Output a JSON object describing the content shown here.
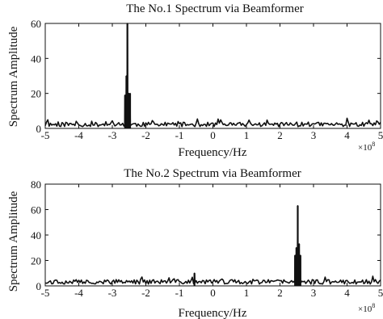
{
  "chart_data": [
    {
      "type": "line",
      "title": "The No.1 Spectrum via Beamformer",
      "xlabel": "Frequency/Hz",
      "ylabel": "Spectrum Amplitude",
      "x_multiplier": "×10",
      "x_multiplier_exp": "8",
      "xlim": [
        -5,
        5
      ],
      "ylim": [
        0,
        60
      ],
      "xticks": [
        "-5",
        "-4",
        "-3",
        "-2",
        "-1",
        "0",
        "1",
        "2",
        "3",
        "4",
        "5"
      ],
      "yticks": [
        "0",
        "20",
        "40",
        "60"
      ],
      "grid": false,
      "noise_floor": 2.8,
      "series": [
        {
          "peaks": [
            {
              "x": -2.62,
              "y": 19
            },
            {
              "x": -2.58,
              "y": 30
            },
            {
              "x": -2.55,
              "y": 60
            },
            {
              "x": -2.51,
              "y": 20
            },
            {
              "x": -2.47,
              "y": 20
            }
          ]
        }
      ]
    },
    {
      "type": "line",
      "title": "The No.2 Spectrum via Beamformer",
      "xlabel": "Frequency/Hz",
      "ylabel": "Spectrum Amplitude",
      "x_multiplier": "×10",
      "x_multiplier_exp": "8",
      "xlim": [
        -5,
        5
      ],
      "ylim": [
        0,
        80
      ],
      "xticks": [
        "-5",
        "-4",
        "-3",
        "-2",
        "-1",
        "0",
        "1",
        "2",
        "3",
        "4",
        "5"
      ],
      "yticks": [
        "0",
        "20",
        "40",
        "60",
        "80"
      ],
      "grid": false,
      "noise_floor": 4,
      "series": [
        {
          "peaks": [
            {
              "x": -0.55,
              "y": 10
            },
            {
              "x": 2.45,
              "y": 24
            },
            {
              "x": 2.49,
              "y": 30
            },
            {
              "x": 2.53,
              "y": 63
            },
            {
              "x": 2.57,
              "y": 33
            },
            {
              "x": 2.61,
              "y": 24
            }
          ]
        }
      ]
    }
  ]
}
